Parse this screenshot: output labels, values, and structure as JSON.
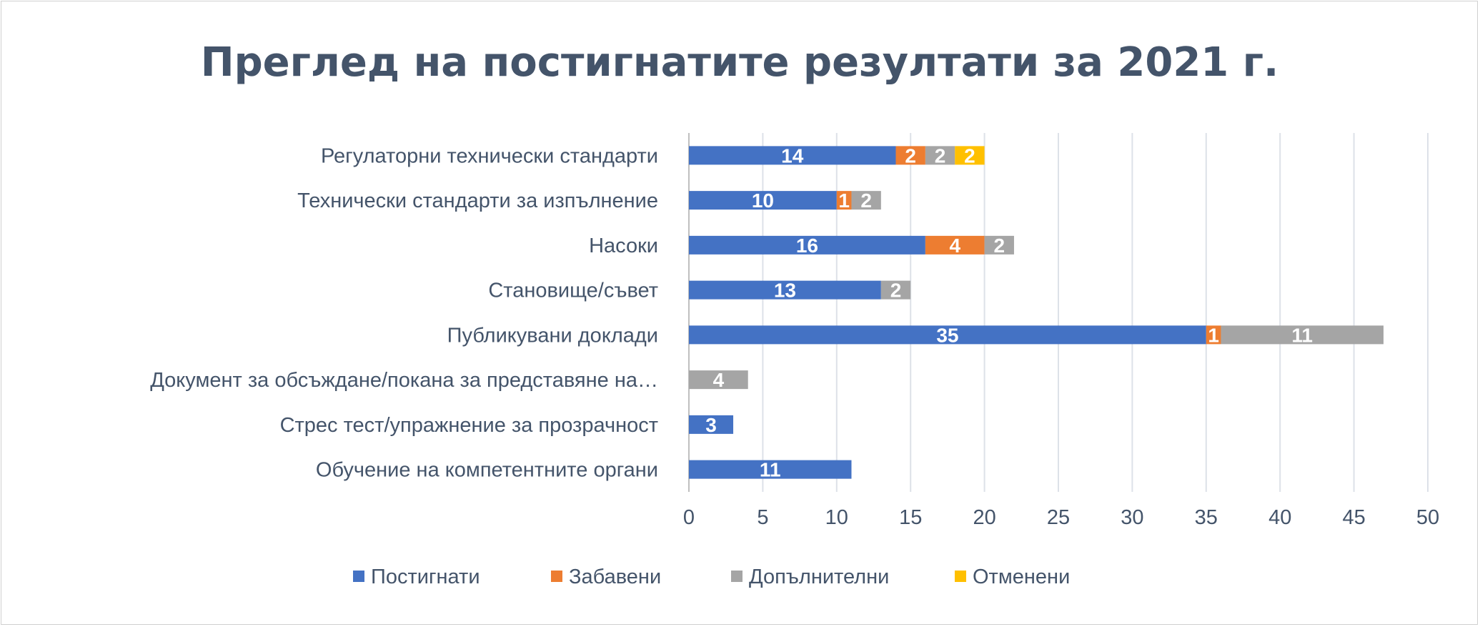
{
  "chart_data": {
    "type": "bar",
    "orientation": "horizontal",
    "stacked": true,
    "title": "Преглед на постигнатите резултати за 2021 г.",
    "categories": [
      "Регулаторни технически стандарти",
      "Технически стандарти за изпълнение",
      "Насоки",
      "Становище/съвет",
      "Публикувани доклади",
      "Документ за обсъждане/покана за представяне на…",
      "Стрес тест/упражнение за прозрачност",
      "Обучение на компетентните органи"
    ],
    "series": [
      {
        "name": "Постигнати",
        "color": "#4472c4",
        "values": [
          14,
          10,
          16,
          13,
          35,
          0,
          3,
          11
        ]
      },
      {
        "name": "Забавени",
        "color": "#ed7d31",
        "values": [
          2,
          1,
          4,
          0,
          1,
          0,
          0,
          0
        ]
      },
      {
        "name": "Допълнителни",
        "color": "#a5a5a5",
        "values": [
          2,
          2,
          2,
          2,
          11,
          4,
          0,
          0
        ]
      },
      {
        "name": "Отменени",
        "color": "#ffc000",
        "values": [
          2,
          0,
          0,
          0,
          0,
          0,
          0,
          0
        ]
      }
    ],
    "xlim": [
      0,
      50
    ],
    "xticks": [
      0,
      5,
      10,
      15,
      20,
      25,
      30,
      35,
      40,
      45,
      50
    ],
    "grid": true,
    "data_labels": true,
    "legend": "bottom"
  }
}
